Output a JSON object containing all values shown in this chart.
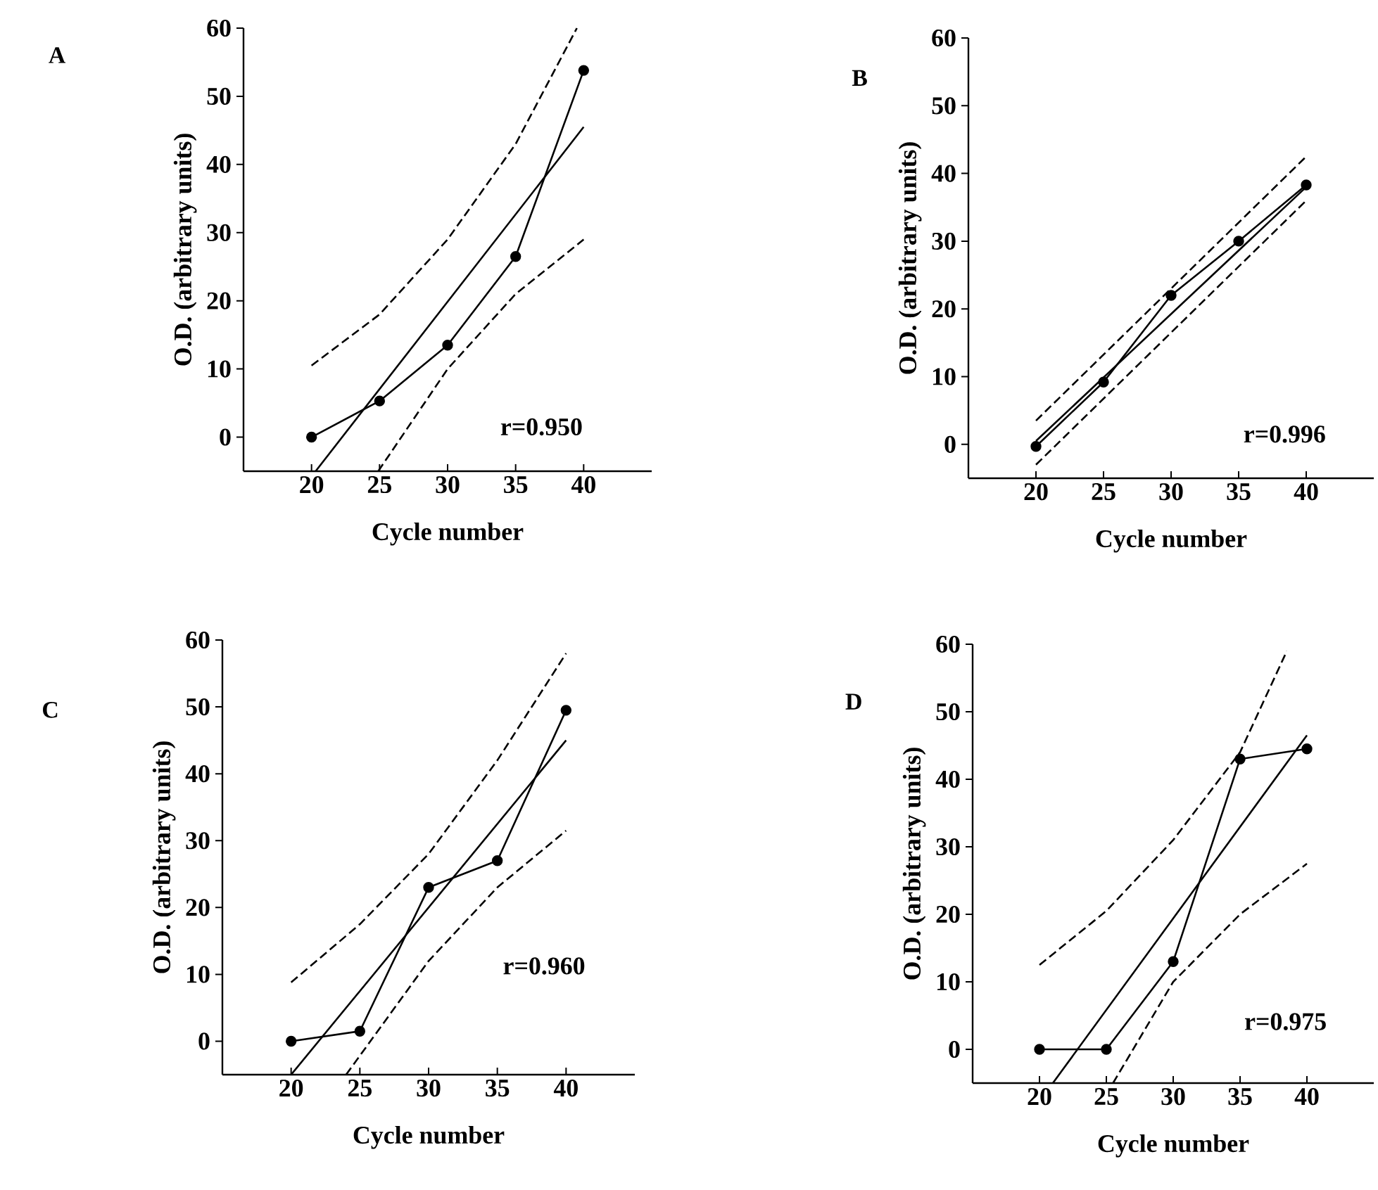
{
  "chart_data": [
    {
      "type": "line",
      "title": "A",
      "xlabel": "Cycle number",
      "ylabel": "O.D. (arbitrary units)",
      "xlim": [
        15,
        45
      ],
      "ylim": [
        -5,
        60
      ],
      "xticks": [
        20,
        25,
        30,
        35,
        40
      ],
      "yticks": [
        0,
        10,
        20,
        30,
        40,
        50,
        60
      ],
      "annotations": [
        "r=0.950"
      ],
      "x": [
        20,
        25,
        30,
        35,
        40
      ],
      "series": [
        {
          "color": "#000000",
          "marker": "circle",
          "line_style": "solid",
          "values": [
            0,
            5.3,
            13.5,
            26.5,
            53.8
          ]
        },
        {
          "color": "#000000",
          "marker": "none",
          "line_style": "solid",
          "x": [
            20.3,
            40
          ],
          "values": [
            -5,
            45.5
          ]
        },
        {
          "color": "#000000",
          "marker": "none",
          "line_style": "dashed",
          "x": [
            20,
            25,
            30,
            35,
            39.5
          ],
          "values": [
            10.5,
            18,
            29,
            43,
            60
          ]
        },
        {
          "color": "#000000",
          "marker": "none",
          "line_style": "dashed",
          "x": [
            24.9,
            30,
            35,
            40
          ],
          "values": [
            -5,
            10,
            21,
            29
          ]
        }
      ]
    },
    {
      "type": "line",
      "title": "B",
      "xlabel": "Cycle number",
      "ylabel": "O.D. (arbitrary units)",
      "xlim": [
        15,
        45
      ],
      "ylim": [
        -5,
        60
      ],
      "xticks": [
        20,
        25,
        30,
        35,
        40
      ],
      "yticks": [
        0,
        10,
        20,
        30,
        40,
        50,
        60
      ],
      "annotations": [
        "r=0.996"
      ],
      "x": [
        20,
        25,
        30,
        35,
        40
      ],
      "series": [
        {
          "color": "#000000",
          "marker": "circle",
          "line_style": "solid",
          "values": [
            -0.3,
            9.2,
            22,
            30,
            38.3
          ]
        },
        {
          "color": "#000000",
          "marker": "none",
          "line_style": "solid",
          "x": [
            20,
            40
          ],
          "values": [
            0.5,
            38
          ]
        },
        {
          "color": "#000000",
          "marker": "none",
          "line_style": "dashed",
          "x": [
            20,
            40
          ],
          "values": [
            3.5,
            42.5
          ]
        },
        {
          "color": "#000000",
          "marker": "none",
          "line_style": "dashed",
          "x": [
            20,
            40
          ],
          "values": [
            -3,
            36
          ]
        }
      ]
    },
    {
      "type": "line",
      "title": "C",
      "xlabel": "Cycle number",
      "ylabel": "O.D. (arbitrary units)",
      "xlim": [
        15,
        45
      ],
      "ylim": [
        -5,
        60
      ],
      "xticks": [
        20,
        25,
        30,
        35,
        40
      ],
      "yticks": [
        0,
        10,
        20,
        30,
        40,
        50,
        60
      ],
      "annotations": [
        "r=0.960"
      ],
      "x": [
        20,
        25,
        30,
        35,
        40
      ],
      "series": [
        {
          "color": "#000000",
          "marker": "circle",
          "line_style": "solid",
          "values": [
            0,
            1.5,
            23,
            27,
            49.5
          ]
        },
        {
          "color": "#000000",
          "marker": "none",
          "line_style": "solid",
          "x": [
            20,
            40
          ],
          "values": [
            -5,
            45
          ]
        },
        {
          "color": "#000000",
          "marker": "none",
          "line_style": "dashed",
          "x": [
            20,
            25,
            30,
            35,
            40
          ],
          "values": [
            8.8,
            17.5,
            28,
            42,
            58
          ]
        },
        {
          "color": "#000000",
          "marker": "none",
          "line_style": "dashed",
          "x": [
            24,
            30,
            35,
            40
          ],
          "values": [
            -5,
            12,
            23,
            31.5
          ]
        }
      ]
    },
    {
      "type": "line",
      "title": "D",
      "xlabel": "Cycle number",
      "ylabel": "O.D. (arbitrary units)",
      "xlim": [
        15,
        45
      ],
      "ylim": [
        -5,
        60
      ],
      "xticks": [
        20,
        25,
        30,
        35,
        40
      ],
      "yticks": [
        0,
        10,
        20,
        30,
        40,
        50,
        60
      ],
      "annotations": [
        "r=0.975"
      ],
      "x": [
        20,
        25,
        30,
        35,
        40
      ],
      "series": [
        {
          "color": "#000000",
          "marker": "circle",
          "line_style": "solid",
          "values": [
            0,
            0,
            13,
            43,
            44.5
          ]
        },
        {
          "color": "#000000",
          "marker": "none",
          "line_style": "solid",
          "x": [
            21,
            40
          ],
          "values": [
            -5,
            46.5
          ]
        },
        {
          "color": "#000000",
          "marker": "none",
          "line_style": "dashed",
          "x": [
            20,
            25,
            30,
            35,
            38.5
          ],
          "values": [
            12.5,
            20.5,
            31,
            44,
            59
          ]
        },
        {
          "color": "#000000",
          "marker": "none",
          "line_style": "dashed",
          "x": [
            25.5,
            30,
            35,
            40
          ],
          "values": [
            -5,
            10,
            20,
            27.5
          ]
        }
      ]
    }
  ]
}
